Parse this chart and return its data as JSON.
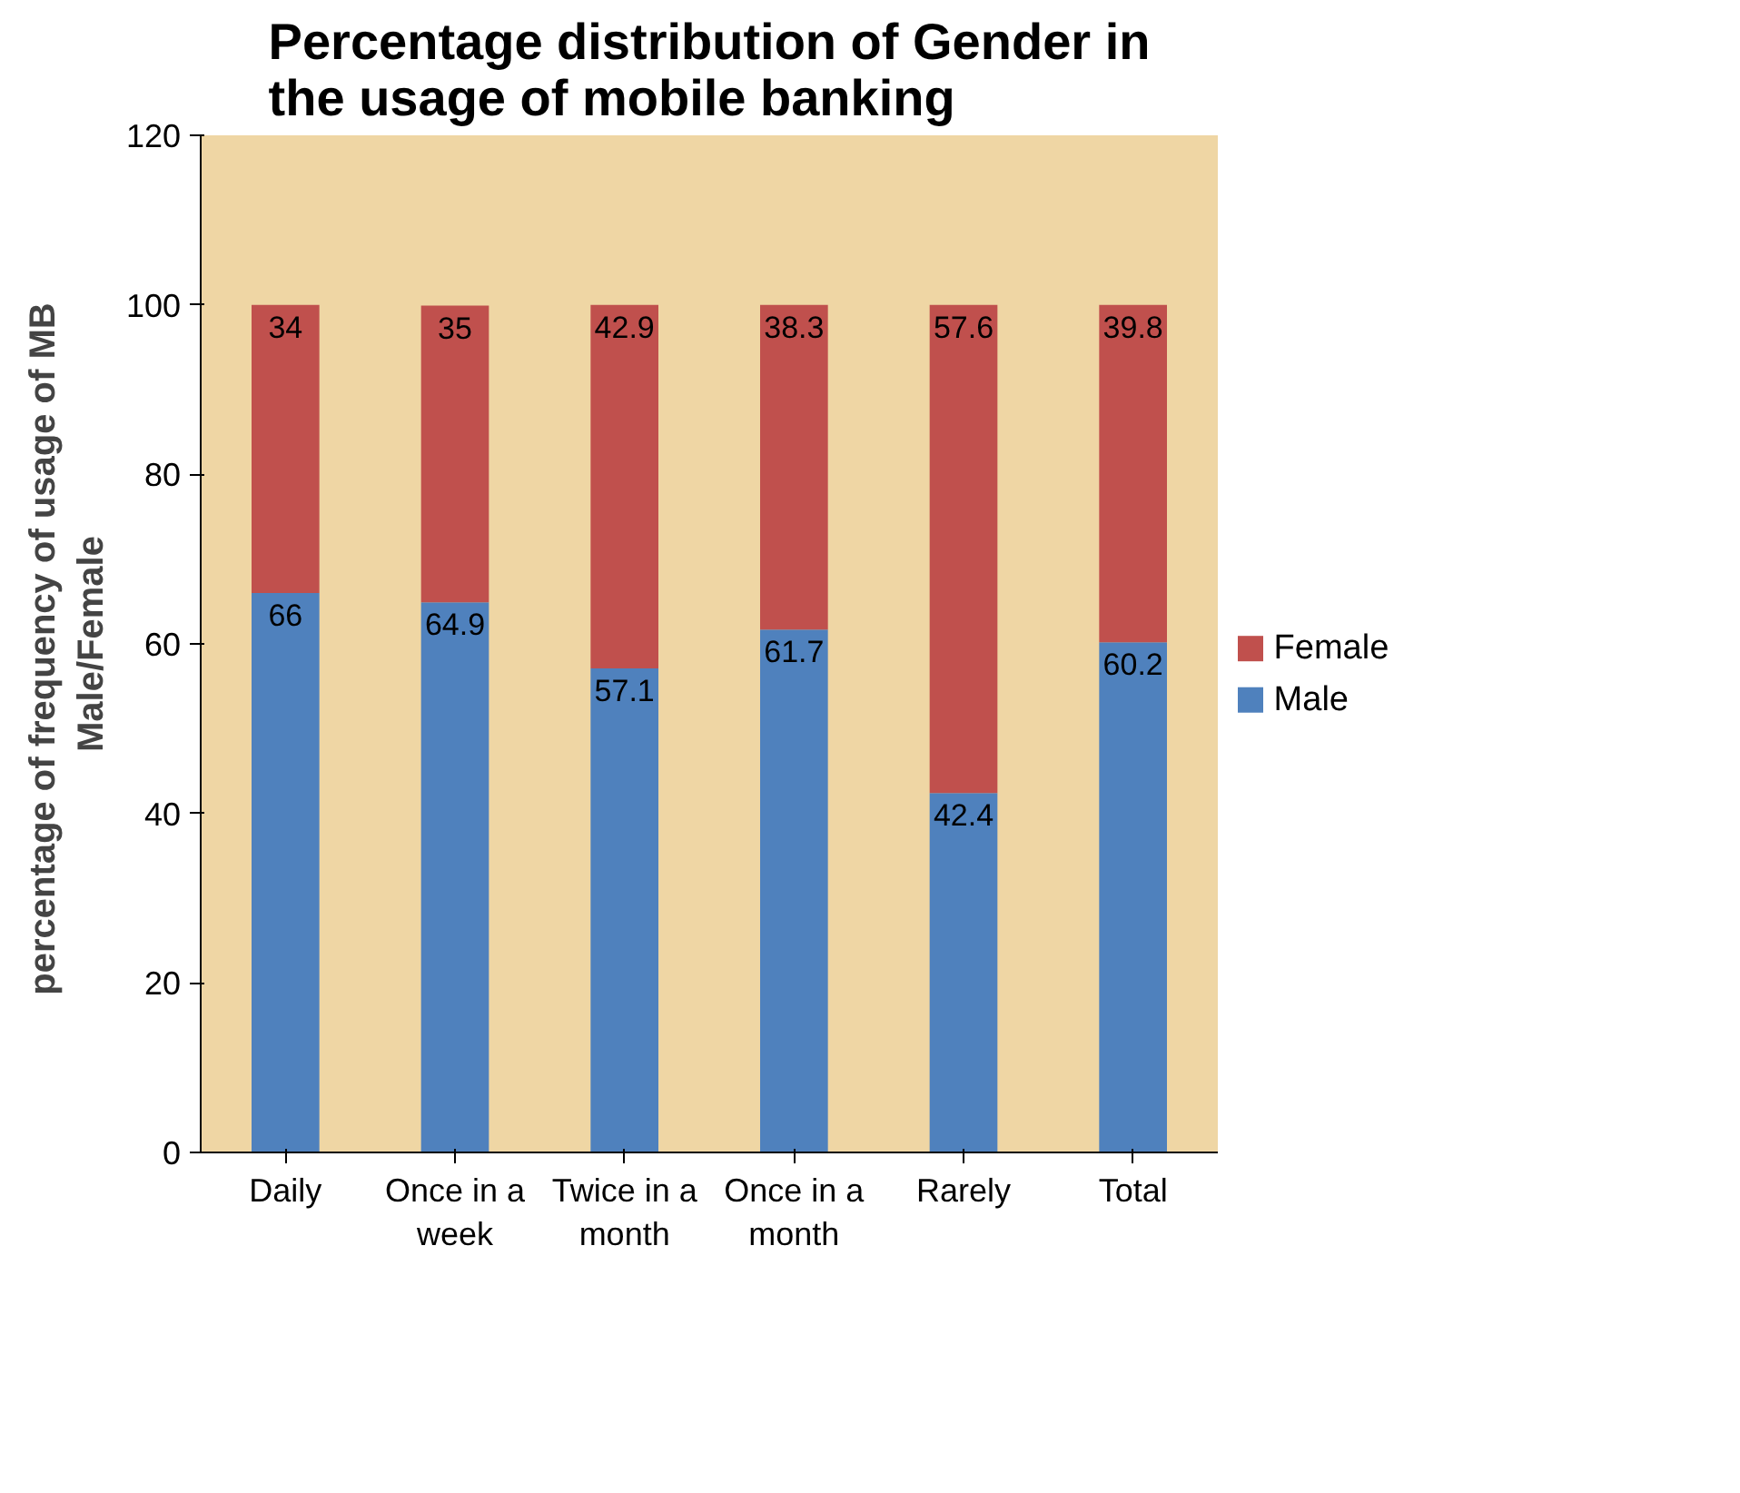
{
  "chart_data": {
    "type": "bar",
    "stacked": true,
    "title": "Percentage distribution of Gender in the usage of mobile banking",
    "ylabel": "percentage of frequency  of usage of MB\nMale/Female",
    "categories": [
      "Daily",
      "Once in a week",
      "Twice in a month",
      "Once in a month",
      "Rarely",
      "Total"
    ],
    "series": [
      {
        "name": "Male",
        "color": "#4f81bd",
        "values": [
          66,
          64.9,
          57.1,
          61.7,
          42.4,
          60.2
        ]
      },
      {
        "name": "Female",
        "color": "#c0504d",
        "values": [
          34,
          35,
          42.9,
          38.3,
          57.6,
          39.8
        ]
      }
    ],
    "ylim": [
      0,
      120
    ],
    "yticks": [
      0,
      20,
      40,
      60,
      80,
      100,
      120
    ],
    "data_labels": true,
    "legend": "right",
    "grid": false
  }
}
